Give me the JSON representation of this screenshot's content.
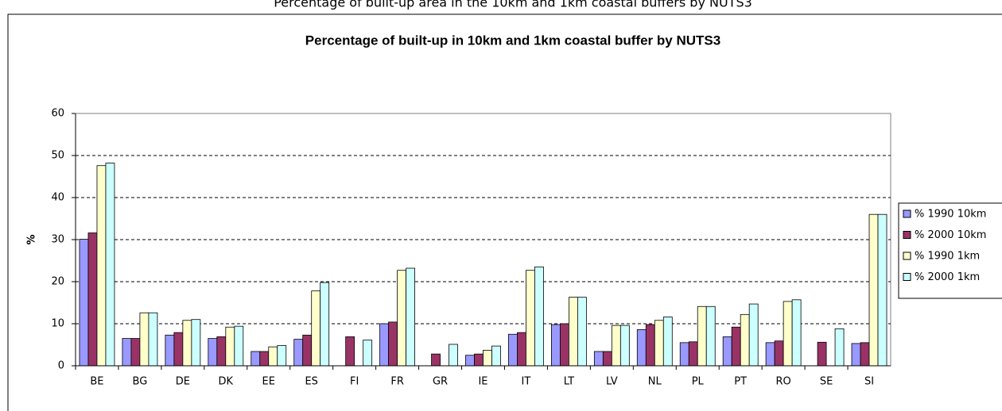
{
  "caption": "Percentage of built-up area in the 10km and 1km coastal buffers by NUTS3",
  "chart_data": {
    "type": "bar",
    "title": "Percentage of built-up in 10km and 1km coastal buffer by NUTS3",
    "y_label": "%",
    "categories": [
      "BE",
      "BG",
      "DE",
      "DK",
      "EE",
      "ES",
      "FI",
      "FR",
      "GR",
      "IE",
      "IT",
      "LT",
      "LV",
      "NL",
      "PL",
      "PT",
      "RO",
      "SE",
      "SI"
    ],
    "series": [
      {
        "name": "% 1990 10km",
        "color": "#9999ff",
        "values": [
          30.1,
          6.5,
          7.3,
          6.5,
          3.4,
          6.3,
          null,
          10.0,
          null,
          2.5,
          7.5,
          9.8,
          3.4,
          8.6,
          5.5,
          6.9,
          5.5,
          null,
          5.3
        ]
      },
      {
        "name": "% 2000 10km",
        "color": "#993366",
        "values": [
          31.6,
          6.5,
          7.9,
          6.9,
          3.4,
          7.3,
          6.9,
          10.4,
          2.8,
          2.8,
          7.9,
          10.0,
          3.4,
          9.8,
          5.7,
          9.2,
          5.9,
          5.6,
          5.5
        ]
      },
      {
        "name": "% 1990 1km",
        "color": "#ffffcc",
        "values": [
          47.6,
          12.6,
          10.8,
          9.2,
          4.5,
          17.8,
          null,
          22.7,
          null,
          3.7,
          22.7,
          16.3,
          9.6,
          10.8,
          14.1,
          12.2,
          15.3,
          null,
          36.0
        ]
      },
      {
        "name": "% 2000 1km",
        "color": "#ccffff",
        "values": [
          48.2,
          12.6,
          11.0,
          9.4,
          4.8,
          19.8,
          6.1,
          23.2,
          5.1,
          4.7,
          23.5,
          16.3,
          9.6,
          11.6,
          14.1,
          14.7,
          15.7,
          8.8,
          36.0
        ]
      }
    ],
    "ylim": [
      0,
      60
    ],
    "yticks": [
      0,
      10,
      20,
      30,
      40,
      50,
      60
    ],
    "grid": true,
    "legend": "right"
  }
}
